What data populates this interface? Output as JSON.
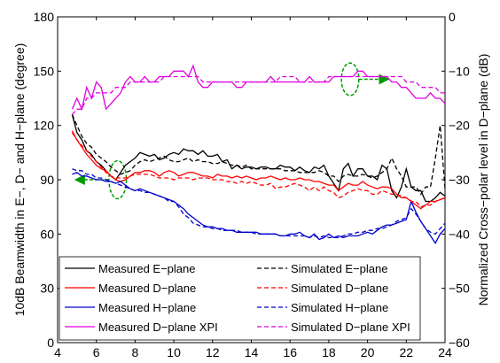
{
  "chart_data": {
    "type": "line",
    "x": [
      4.75,
      5,
      5.25,
      5.5,
      5.75,
      6,
      6.25,
      6.5,
      6.75,
      7,
      7.25,
      7.5,
      7.75,
      8,
      8.25,
      8.5,
      8.75,
      9,
      9.25,
      9.5,
      9.75,
      10,
      10.25,
      10.5,
      10.75,
      11,
      11.25,
      11.5,
      11.75,
      12,
      12.25,
      12.5,
      12.75,
      13,
      13.25,
      13.5,
      13.75,
      14,
      14.25,
      14.5,
      14.75,
      15,
      15.25,
      15.5,
      15.75,
      16,
      16.25,
      16.5,
      16.75,
      17,
      17.25,
      17.5,
      17.75,
      18,
      18.25,
      18.5,
      18.75,
      19,
      19.25,
      19.5,
      19.75,
      20,
      20.25,
      20.5,
      20.75,
      21,
      21.25,
      21.5,
      21.75,
      22,
      22.25,
      22.5,
      22.75,
      23,
      23.25,
      23.5,
      23.75,
      24
    ],
    "xlim": [
      4,
      24
    ],
    "xticks": [
      4,
      6,
      8,
      10,
      12,
      14,
      16,
      18,
      20,
      22,
      24
    ],
    "left_axis": {
      "label": "10dB Beamwidth in E−, D− and H−plane (degree)",
      "lim": [
        0,
        180
      ],
      "ticks": [
        0,
        30,
        60,
        90,
        120,
        150,
        180
      ],
      "tick_labels": [
        "0",
        "30",
        "60",
        "90",
        "120",
        "150",
        "180"
      ]
    },
    "right_axis": {
      "label": "Normalized Cross−polar level in D−plane (dB)",
      "lim": [
        -60,
        0
      ],
      "ticks": [
        -60,
        -50,
        -40,
        -30,
        -20,
        -10,
        0
      ],
      "tick_labels": [
        "−60",
        "−50",
        "−40",
        "−30",
        "−20",
        "−10",
        "0"
      ]
    },
    "grid": false,
    "legend_position": "bottom",
    "series": [
      {
        "name": "Measured E−plane",
        "axis": "left",
        "color": "#000000",
        "dash": "solid",
        "values": [
          126,
          116,
          112,
          106,
          104,
          100,
          98,
          95,
          92,
          90,
          94,
          98,
          100,
          102,
          105,
          104,
          103,
          104,
          101,
          102,
          104,
          105,
          104,
          107,
          106,
          106,
          104,
          106,
          103,
          103,
          104,
          100,
          101,
          96,
          98,
          96,
          97,
          97,
          96,
          97,
          97,
          96,
          96,
          98,
          97,
          97,
          95,
          97,
          95,
          94,
          97,
          96,
          98,
          92,
          88,
          84,
          96,
          99,
          92,
          96,
          96,
          92,
          92,
          90,
          98,
          96,
          84,
          80,
          86,
          96,
          86,
          84,
          84,
          78,
          78,
          80,
          83,
          81
        ]
      },
      {
        "name": "Measured D−plane",
        "axis": "left",
        "color": "#ff0000",
        "dash": "solid",
        "values": [
          117,
          112,
          108,
          104,
          101,
          98,
          96,
          95,
          92,
          90,
          89,
          90,
          92,
          94,
          94,
          95,
          95,
          94,
          92,
          94,
          95,
          94,
          92,
          93,
          94,
          94,
          93,
          92,
          92,
          91,
          93,
          92,
          92,
          91,
          92,
          91,
          92,
          91,
          90,
          91,
          91,
          92,
          91,
          90,
          91,
          90,
          90,
          91,
          90,
          90,
          89,
          89,
          88,
          87,
          87,
          84,
          86,
          88,
          87,
          87,
          89,
          87,
          86,
          85,
          86,
          86,
          85,
          82,
          80,
          80,
          78,
          76,
          74,
          76,
          78,
          78,
          79,
          80
        ]
      },
      {
        "name": "Measured H−plane",
        "axis": "left",
        "color": "#0000cc",
        "dash": "solid",
        "values": [
          93,
          94,
          92,
          92,
          91,
          90,
          90,
          89,
          89,
          88,
          89,
          87,
          85,
          84,
          85,
          84,
          83,
          82,
          81,
          80,
          79,
          78,
          76,
          74,
          71,
          69,
          67,
          65,
          64,
          64,
          63,
          63,
          62,
          62,
          61,
          61,
          61,
          61,
          61,
          60,
          60,
          60,
          60,
          59,
          59,
          60,
          60,
          61,
          59,
          58,
          60,
          57,
          58,
          60,
          58,
          59,
          58,
          59,
          59,
          59,
          60,
          61,
          60,
          62,
          64,
          65,
          65,
          66,
          67,
          68,
          78,
          72,
          67,
          63,
          59,
          55,
          60,
          63
        ]
      },
      {
        "name": "Measured D−plane XPI",
        "axis": "right",
        "color": "#e000e0",
        "dash": "solid",
        "values": [
          -17,
          -15,
          -17,
          -13,
          -15,
          -12,
          -13,
          -17,
          -16,
          -15,
          -14,
          -12,
          -11,
          -12,
          -12,
          -11,
          -12,
          -12,
          -11,
          -11,
          -11,
          -10,
          -10,
          -10,
          -11,
          -9,
          -12,
          -13,
          -13,
          -12,
          -12,
          -12,
          -12,
          -12,
          -13,
          -13,
          -12,
          -12,
          -12,
          -12,
          -12,
          -11,
          -12,
          -12,
          -12,
          -12,
          -12,
          -12,
          -12,
          -11,
          -12,
          -12,
          -12,
          -12,
          -11,
          -11,
          -11,
          -11,
          -11,
          -10,
          -10,
          -11,
          -11,
          -11,
          -11,
          -11,
          -12,
          -12,
          -13,
          -13,
          -14,
          -15,
          -15,
          -15,
          -14,
          -15,
          -15,
          -16
        ]
      },
      {
        "name": "Simulated E−plane",
        "axis": "left",
        "color": "#000000",
        "dash": "dashed",
        "values": [
          126,
          120,
          114,
          110,
          108,
          104,
          102,
          100,
          97,
          95,
          93,
          94,
          95,
          98,
          100,
          101,
          100,
          101,
          102,
          103,
          101,
          100,
          100,
          101,
          102,
          100,
          101,
          100,
          100,
          99,
          99,
          100,
          99,
          98,
          98,
          97,
          98,
          96,
          96,
          96,
          96,
          96,
          96,
          96,
          95,
          95,
          95,
          94,
          94,
          94,
          94,
          95,
          94,
          92,
          92,
          89,
          92,
          93,
          92,
          92,
          93,
          92,
          91,
          92,
          94,
          96,
          102,
          96,
          92,
          86,
          86,
          86,
          82,
          86,
          86,
          102,
          120,
          85
        ]
      },
      {
        "name": "Simulated D−plane",
        "axis": "left",
        "color": "#ff0000",
        "dash": "dashed",
        "values": [
          116,
          112,
          109,
          106,
          103,
          100,
          97,
          94,
          92,
          91,
          91,
          91,
          92,
          93,
          93,
          93,
          93,
          92,
          91,
          91,
          91,
          90,
          91,
          91,
          91,
          90,
          91,
          91,
          91,
          90,
          90,
          90,
          89,
          89,
          88,
          89,
          88,
          89,
          88,
          87,
          87,
          88,
          85,
          86,
          86,
          87,
          88,
          87,
          86,
          84,
          86,
          84,
          86,
          84,
          83,
          80,
          81,
          83,
          84,
          85,
          84,
          84,
          82,
          82,
          84,
          83,
          82,
          82,
          81,
          80,
          78,
          78,
          75,
          76,
          76,
          78,
          79,
          80
        ]
      },
      {
        "name": "Simulated H−plane",
        "axis": "left",
        "color": "#0000cc",
        "dash": "dashed",
        "values": [
          96,
          95,
          95,
          93,
          93,
          91,
          91,
          90,
          89,
          88,
          87,
          86,
          85,
          84,
          84,
          83,
          83,
          82,
          81,
          80,
          78,
          78,
          75,
          71,
          69,
          66,
          65,
          64,
          64,
          63,
          63,
          62,
          62,
          62,
          62,
          61,
          61,
          61,
          60,
          60,
          60,
          60,
          60,
          59,
          59,
          59,
          59,
          59,
          59,
          58,
          59,
          58,
          59,
          58,
          58,
          58,
          59,
          60,
          60,
          61,
          61,
          62,
          62,
          63,
          63,
          64,
          65,
          67,
          68,
          69,
          74,
          71,
          67,
          63,
          61,
          60,
          63,
          66
        ]
      },
      {
        "name": "Simulated D−plane XPI",
        "axis": "right",
        "color": "#e000e0",
        "dash": "dashed",
        "values": [
          -18,
          -17,
          -17,
          -15,
          -15,
          -14,
          -14,
          -14,
          -14,
          -13,
          -13,
          -13,
          -12,
          -12,
          -12,
          -12,
          -12,
          -12,
          -12,
          -11,
          -11,
          -11,
          -11,
          -11,
          -11,
          -11,
          -11,
          -12,
          -12,
          -12,
          -12,
          -12,
          -12,
          -12,
          -12,
          -12,
          -12,
          -12,
          -12,
          -12,
          -12,
          -12,
          -12,
          -11,
          -11,
          -11,
          -11,
          -12,
          -12,
          -12,
          -12,
          -12,
          -12,
          -11,
          -11,
          -11,
          -11,
          -11,
          -11,
          -11,
          -11,
          -11,
          -11,
          -11,
          -11,
          -11,
          -11,
          -11,
          -11,
          -12,
          -12,
          -12,
          -13,
          -13,
          -13,
          -13,
          -14,
          -14
        ]
      }
    ],
    "annotations": [
      {
        "type": "ellipse",
        "color": "#009900",
        "cx": 7.1,
        "cy": -30,
        "rx": 0.45,
        "ry": 3.5,
        "arrow_to_x": 5.0
      },
      {
        "type": "ellipse",
        "color": "#009900",
        "cx": 19.1,
        "cy": -11.5,
        "rx": 0.45,
        "ry": 3.0,
        "arrow_to_x": 21.0
      }
    ]
  }
}
